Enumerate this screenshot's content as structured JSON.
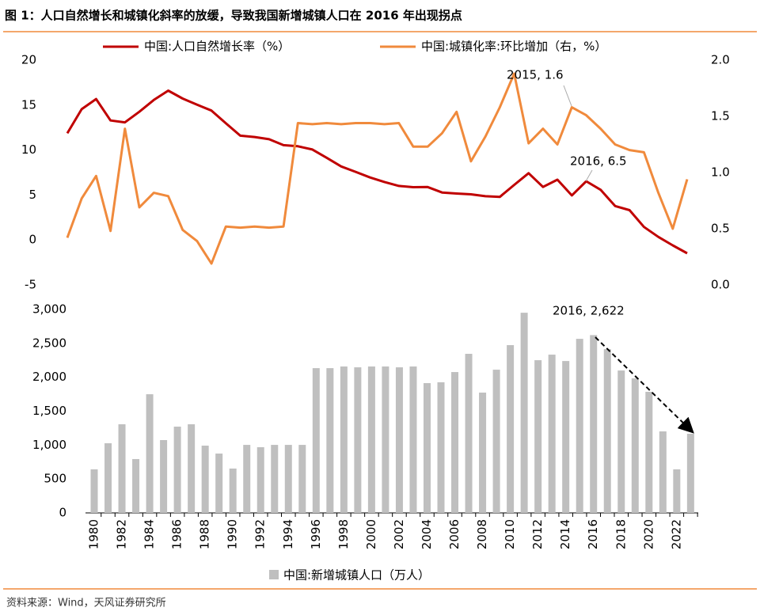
{
  "title": "图 1：人口自然增长和城镇化斜率的放缓，导致我国新增城镇人口在 2016 年出现拐点",
  "source": "资料来源：Wind，天风证券研究所",
  "chart_data": [
    {
      "type": "line",
      "series": [
        {
          "name": "中国:人口自然增长率（%）",
          "color": "#c00000",
          "values": [
            11.87,
            14.55,
            15.68,
            13.29,
            13.08,
            14.26,
            15.57,
            16.61,
            15.73,
            15.04,
            14.39,
            12.98,
            11.6,
            11.45,
            11.21,
            10.55,
            10.42,
            10.06,
            9.14,
            8.18,
            7.58,
            6.95,
            6.45,
            6.01,
            5.87,
            5.89,
            5.28,
            5.17,
            5.08,
            4.87,
            4.79,
            6.13,
            7.43,
            5.9,
            6.71,
            4.96,
            6.53,
            5.58,
            3.78,
            3.32,
            1.45,
            0.34,
            -0.6,
            -1.48
          ]
        },
        {
          "name": "中国:城镇化率:环比增加（右，%）",
          "color": "#f08a3c",
          "axis": "y2",
          "values": [
            0.42,
            0.77,
            0.97,
            0.48,
            1.39,
            0.69,
            0.82,
            0.79,
            0.49,
            0.39,
            0.19,
            0.52,
            0.51,
            0.52,
            0.51,
            0.52,
            1.44,
            1.43,
            1.44,
            1.43,
            1.44,
            1.44,
            1.43,
            1.44,
            1.23,
            1.23,
            1.35,
            1.54,
            1.1,
            1.32,
            1.58,
            1.88,
            1.26,
            1.39,
            1.25,
            1.58,
            1.51,
            1.39,
            1.25,
            1.2,
            1.18,
            0.82,
            0.5,
            0.94
          ]
        }
      ],
      "ylim": [
        -5,
        20
      ],
      "yticks": [
        -5,
        0,
        5,
        10,
        15,
        20
      ],
      "y2lim": [
        0,
        2
      ],
      "y2ticks": [
        {
          "value": 0,
          "label": "0.0"
        },
        {
          "value": 0.5,
          "label": "0.5"
        },
        {
          "value": 1,
          "label": "1.0"
        },
        {
          "value": 1.5,
          "label": "1.5"
        },
        {
          "value": 2,
          "label": "2.0"
        }
      ],
      "annotations": [
        "2015, 1.6",
        "2016, 6.5"
      ]
    },
    {
      "type": "bar",
      "categories": [
        "1980",
        null,
        "1982",
        null,
        "1984",
        null,
        "1986",
        null,
        "1988",
        null,
        "1990",
        null,
        "1992",
        null,
        "1994",
        null,
        "1996",
        null,
        "1998",
        null,
        "2000",
        null,
        "2002",
        null,
        "2004",
        null,
        "2006",
        null,
        "2008",
        null,
        "2010",
        null,
        "2012",
        null,
        "2014",
        null,
        "2016",
        null,
        "2018",
        null,
        "2020",
        null,
        "2022",
        null
      ],
      "series": [
        {
          "name": "中国:新增城镇人口（万人）",
          "color": "#bfbfbf",
          "values": [
            642,
            1027,
            1307,
            794,
            1750,
            1074,
            1272,
            1307,
            992,
            875,
            654,
            1003,
            969,
            1003,
            1003,
            1003,
            2135,
            2135,
            2159,
            2147,
            2159,
            2159,
            2147,
            2159,
            1914,
            1926,
            2077,
            2346,
            1774,
            2112,
            2474,
            2952,
            2252,
            2334,
            2240,
            2567,
            2622,
            2415,
            2100,
            1984,
            1786,
            1202,
            642,
            1167
          ]
        }
      ],
      "ylim": [
        0,
        3000
      ],
      "yticks": [
        0,
        500,
        {
          "value": 1000,
          "label": "1,000"
        },
        {
          "value": 1500,
          "label": "1,500"
        },
        {
          "value": 2000,
          "label": "2,000"
        },
        {
          "value": 2500,
          "label": "2,500"
        },
        {
          "value": 3000,
          "label": "3,000"
        }
      ],
      "annotations": [
        "2016, 2,622"
      ]
    }
  ]
}
